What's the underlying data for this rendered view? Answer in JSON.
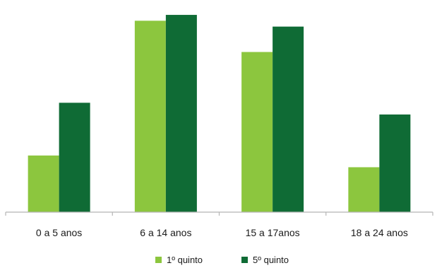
{
  "chart_data": {
    "type": "bar",
    "title": "",
    "xlabel": "",
    "ylabel": "",
    "categories": [
      "0 a 5 anos",
      "6 a 14 anos",
      "15 a 17anos",
      "18 a 24 anos"
    ],
    "series": [
      {
        "name": "1º quinto",
        "color": "#8cc63e",
        "values": [
          29,
          98,
          82,
          23
        ]
      },
      {
        "name": "5º quinto",
        "color": "#0f6b35",
        "values": [
          56,
          101,
          95,
          50
        ]
      }
    ],
    "ylim": [
      0,
      105
    ],
    "grid": false,
    "y_axis_visible": false,
    "legend": "bottom-center"
  }
}
